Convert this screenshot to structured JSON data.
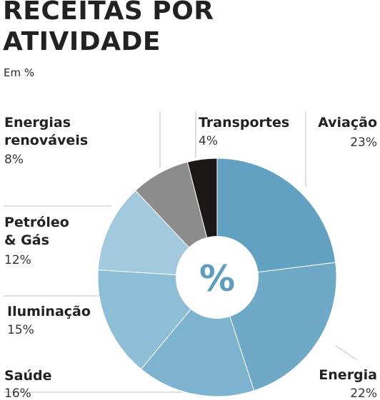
{
  "title": "RECEITAS POR ATIVIDADE",
  "subtitle": "Em %",
  "center_symbol": "%",
  "chart_data": {
    "type": "pie",
    "donut": true,
    "title": "RECEITAS POR ATIVIDADE",
    "subtitle": "Em %",
    "slices": [
      {
        "label": "Aviação",
        "value": 23,
        "value_label": "23%",
        "color": "#63a1c2"
      },
      {
        "label": "Energia",
        "value": 22,
        "value_label": "22%",
        "color": "#6fa9c7"
      },
      {
        "label": "Saúde",
        "value": 16,
        "value_label": "16%",
        "color": "#7eb3cf"
      },
      {
        "label": "Iluminação",
        "value": 15,
        "value_label": "15%",
        "color": "#8ebdd6"
      },
      {
        "label": "Petróleo & Gás",
        "value": 12,
        "value_label": "12%",
        "color": "#a3c9df"
      },
      {
        "label": "Energias renováveis",
        "value": 8,
        "value_label": "8%",
        "color": "#8c8c8c"
      },
      {
        "label": "Transportes",
        "value": 4,
        "value_label": "4%",
        "color": "#1d1818"
      }
    ]
  }
}
